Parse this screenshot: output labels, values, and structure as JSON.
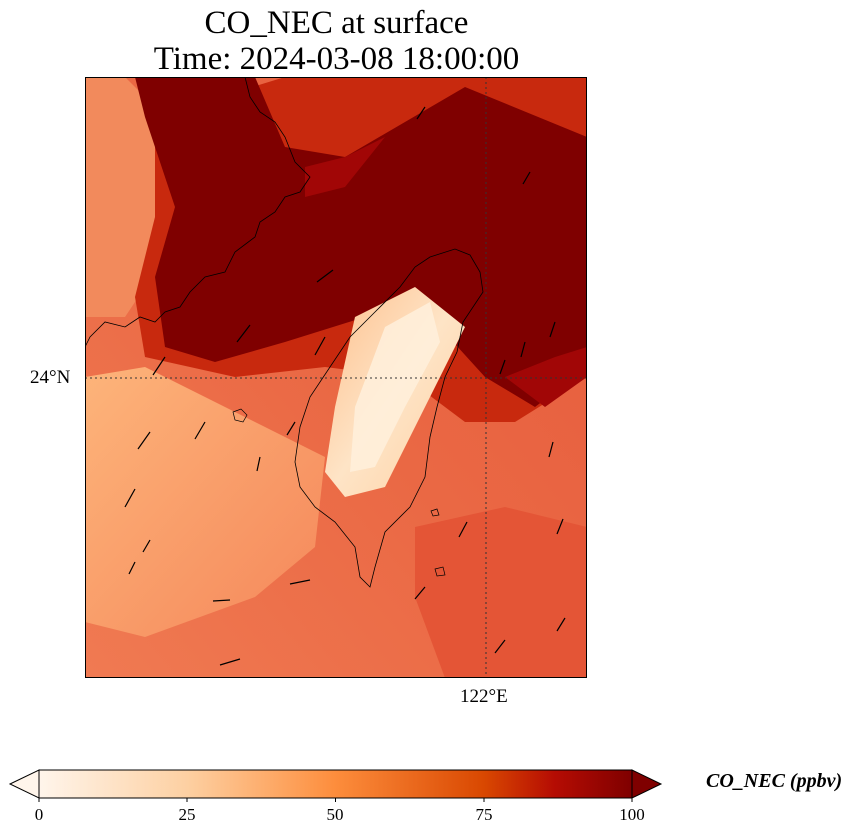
{
  "title": {
    "line1": "CO_NEC at surface",
    "line2": "Time: 2024-03-08 18:00:00"
  },
  "map": {
    "lat_label": "24°N",
    "lon_label": "122°E",
    "colormap": [
      "#fff5eb",
      "#fdd0a2",
      "#fd8d3c",
      "#e5502a",
      "#b50c03",
      "#7f0000"
    ]
  },
  "colorbar": {
    "label": "CO_NEC (ppbv)",
    "ticks": [
      "0",
      "25",
      "50",
      "75",
      "100"
    ],
    "min": 0,
    "max": 100,
    "extend": "both"
  }
}
